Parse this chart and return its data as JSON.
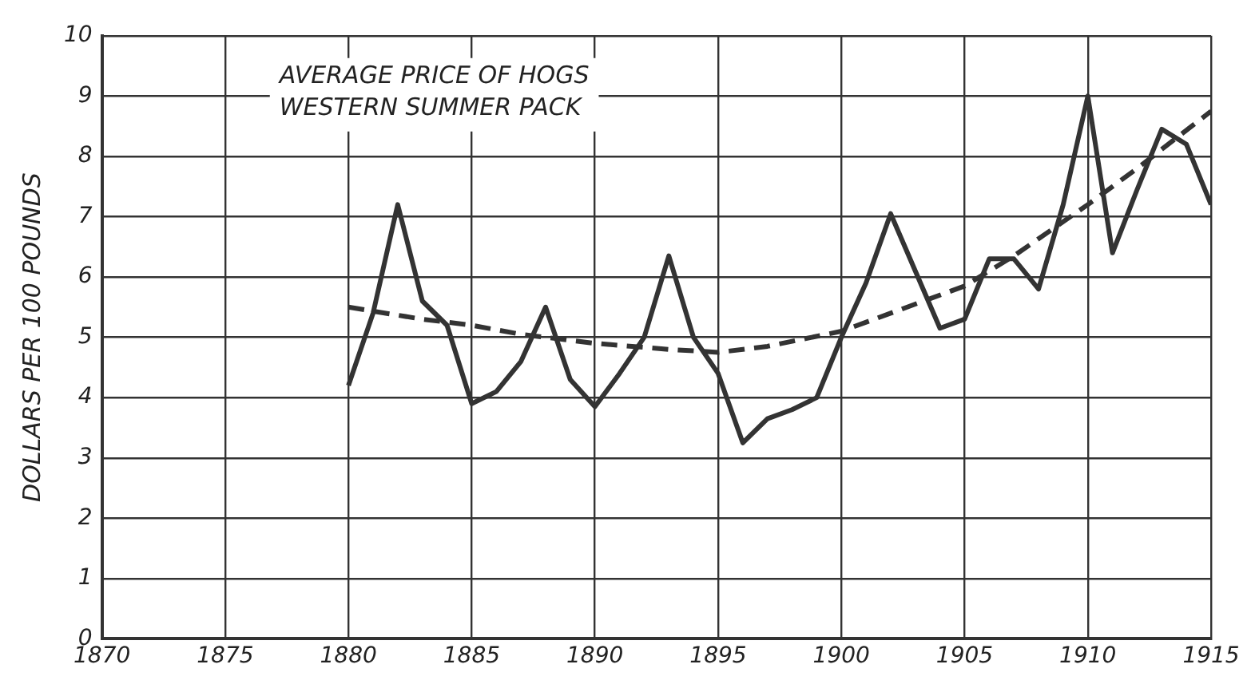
{
  "chart_data": {
    "type": "line",
    "title": "AVERAGE PRICE OF HOGS",
    "subtitle": "WESTERN SUMMER PACK",
    "ylabel": "DOLLARS PER 100 POUNDS",
    "x": [
      1880,
      1881,
      1882,
      1883,
      1884,
      1885,
      1886,
      1887,
      1888,
      1889,
      1890,
      1891,
      1892,
      1893,
      1894,
      1895,
      1896,
      1897,
      1898,
      1899,
      1900,
      1901,
      1902,
      1903,
      1904,
      1905,
      1906,
      1907,
      1908,
      1909,
      1910,
      1911,
      1912,
      1913,
      1914,
      1915
    ],
    "series": [
      {
        "type": "line",
        "color": "#333333",
        "line_style": "solid",
        "values": [
          4.2,
          5.4,
          7.2,
          5.6,
          5.2,
          3.9,
          4.1,
          4.6,
          5.5,
          4.3,
          3.85,
          4.4,
          5.0,
          6.35,
          5.0,
          4.4,
          3.25,
          3.65,
          3.8,
          4.0,
          5.0,
          5.9,
          7.05,
          6.1,
          5.15,
          5.3,
          6.3,
          6.3,
          5.8,
          7.2,
          9.0,
          6.4,
          7.45,
          8.45,
          8.2,
          7.2
        ]
      },
      {
        "type": "line",
        "color": "#333333",
        "line_style": "dashed",
        "x": [
          1880,
          1883,
          1885,
          1887,
          1890,
          1893,
          1895,
          1897,
          1900,
          1902,
          1905,
          1907,
          1910,
          1912,
          1915
        ],
        "values": [
          5.5,
          5.3,
          5.2,
          5.05,
          4.9,
          4.8,
          4.75,
          4.85,
          5.1,
          5.4,
          5.85,
          6.35,
          7.2,
          7.8,
          8.75
        ]
      }
    ],
    "xlim": [
      1870,
      1915
    ],
    "xticks": [
      1870,
      1875,
      1880,
      1885,
      1890,
      1895,
      1900,
      1905,
      1910,
      1915
    ],
    "ylim": [
      0,
      10
    ],
    "yticks": [
      0,
      1,
      2,
      3,
      4,
      5,
      6,
      7,
      8,
      9,
      10
    ],
    "grid": true,
    "marker": "none"
  }
}
